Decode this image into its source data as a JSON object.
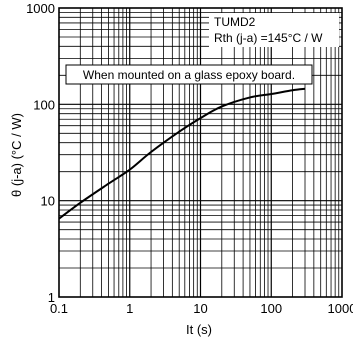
{
  "chart_data": {
    "type": "line",
    "xlabel": "It (s)",
    "ylabel": "θ (j-a) (°C / W)",
    "x_scale": "log",
    "y_scale": "log",
    "xlim": [
      0.1,
      1000
    ],
    "ylim": [
      1,
      1000
    ],
    "x_ticks": [
      {
        "value": 0.1,
        "label": "0.1"
      },
      {
        "value": 1,
        "label": "1"
      },
      {
        "value": 10,
        "label": "10"
      },
      {
        "value": 100,
        "label": "100"
      },
      {
        "value": 1000,
        "label": "1000"
      }
    ],
    "y_ticks": [
      {
        "value": 1,
        "label": "1"
      },
      {
        "value": 10,
        "label": "10"
      },
      {
        "value": 100,
        "label": "100"
      },
      {
        "value": 1000,
        "label": "1000"
      }
    ],
    "grid": true,
    "series": [
      {
        "x": [
          0.1,
          0.2,
          0.5,
          1,
          2,
          5,
          10,
          20,
          50,
          100,
          200,
          300
        ],
        "y": [
          6.5,
          9.5,
          15,
          21,
          32,
          52,
          72,
          95,
          118,
          128,
          140,
          145
        ],
        "color": "#000000"
      }
    ],
    "annotations": {
      "part": "TUMD2",
      "rth": "Rth (j-a) =145°C / W",
      "mount_note": "When mounted on a glass epoxy board."
    }
  }
}
